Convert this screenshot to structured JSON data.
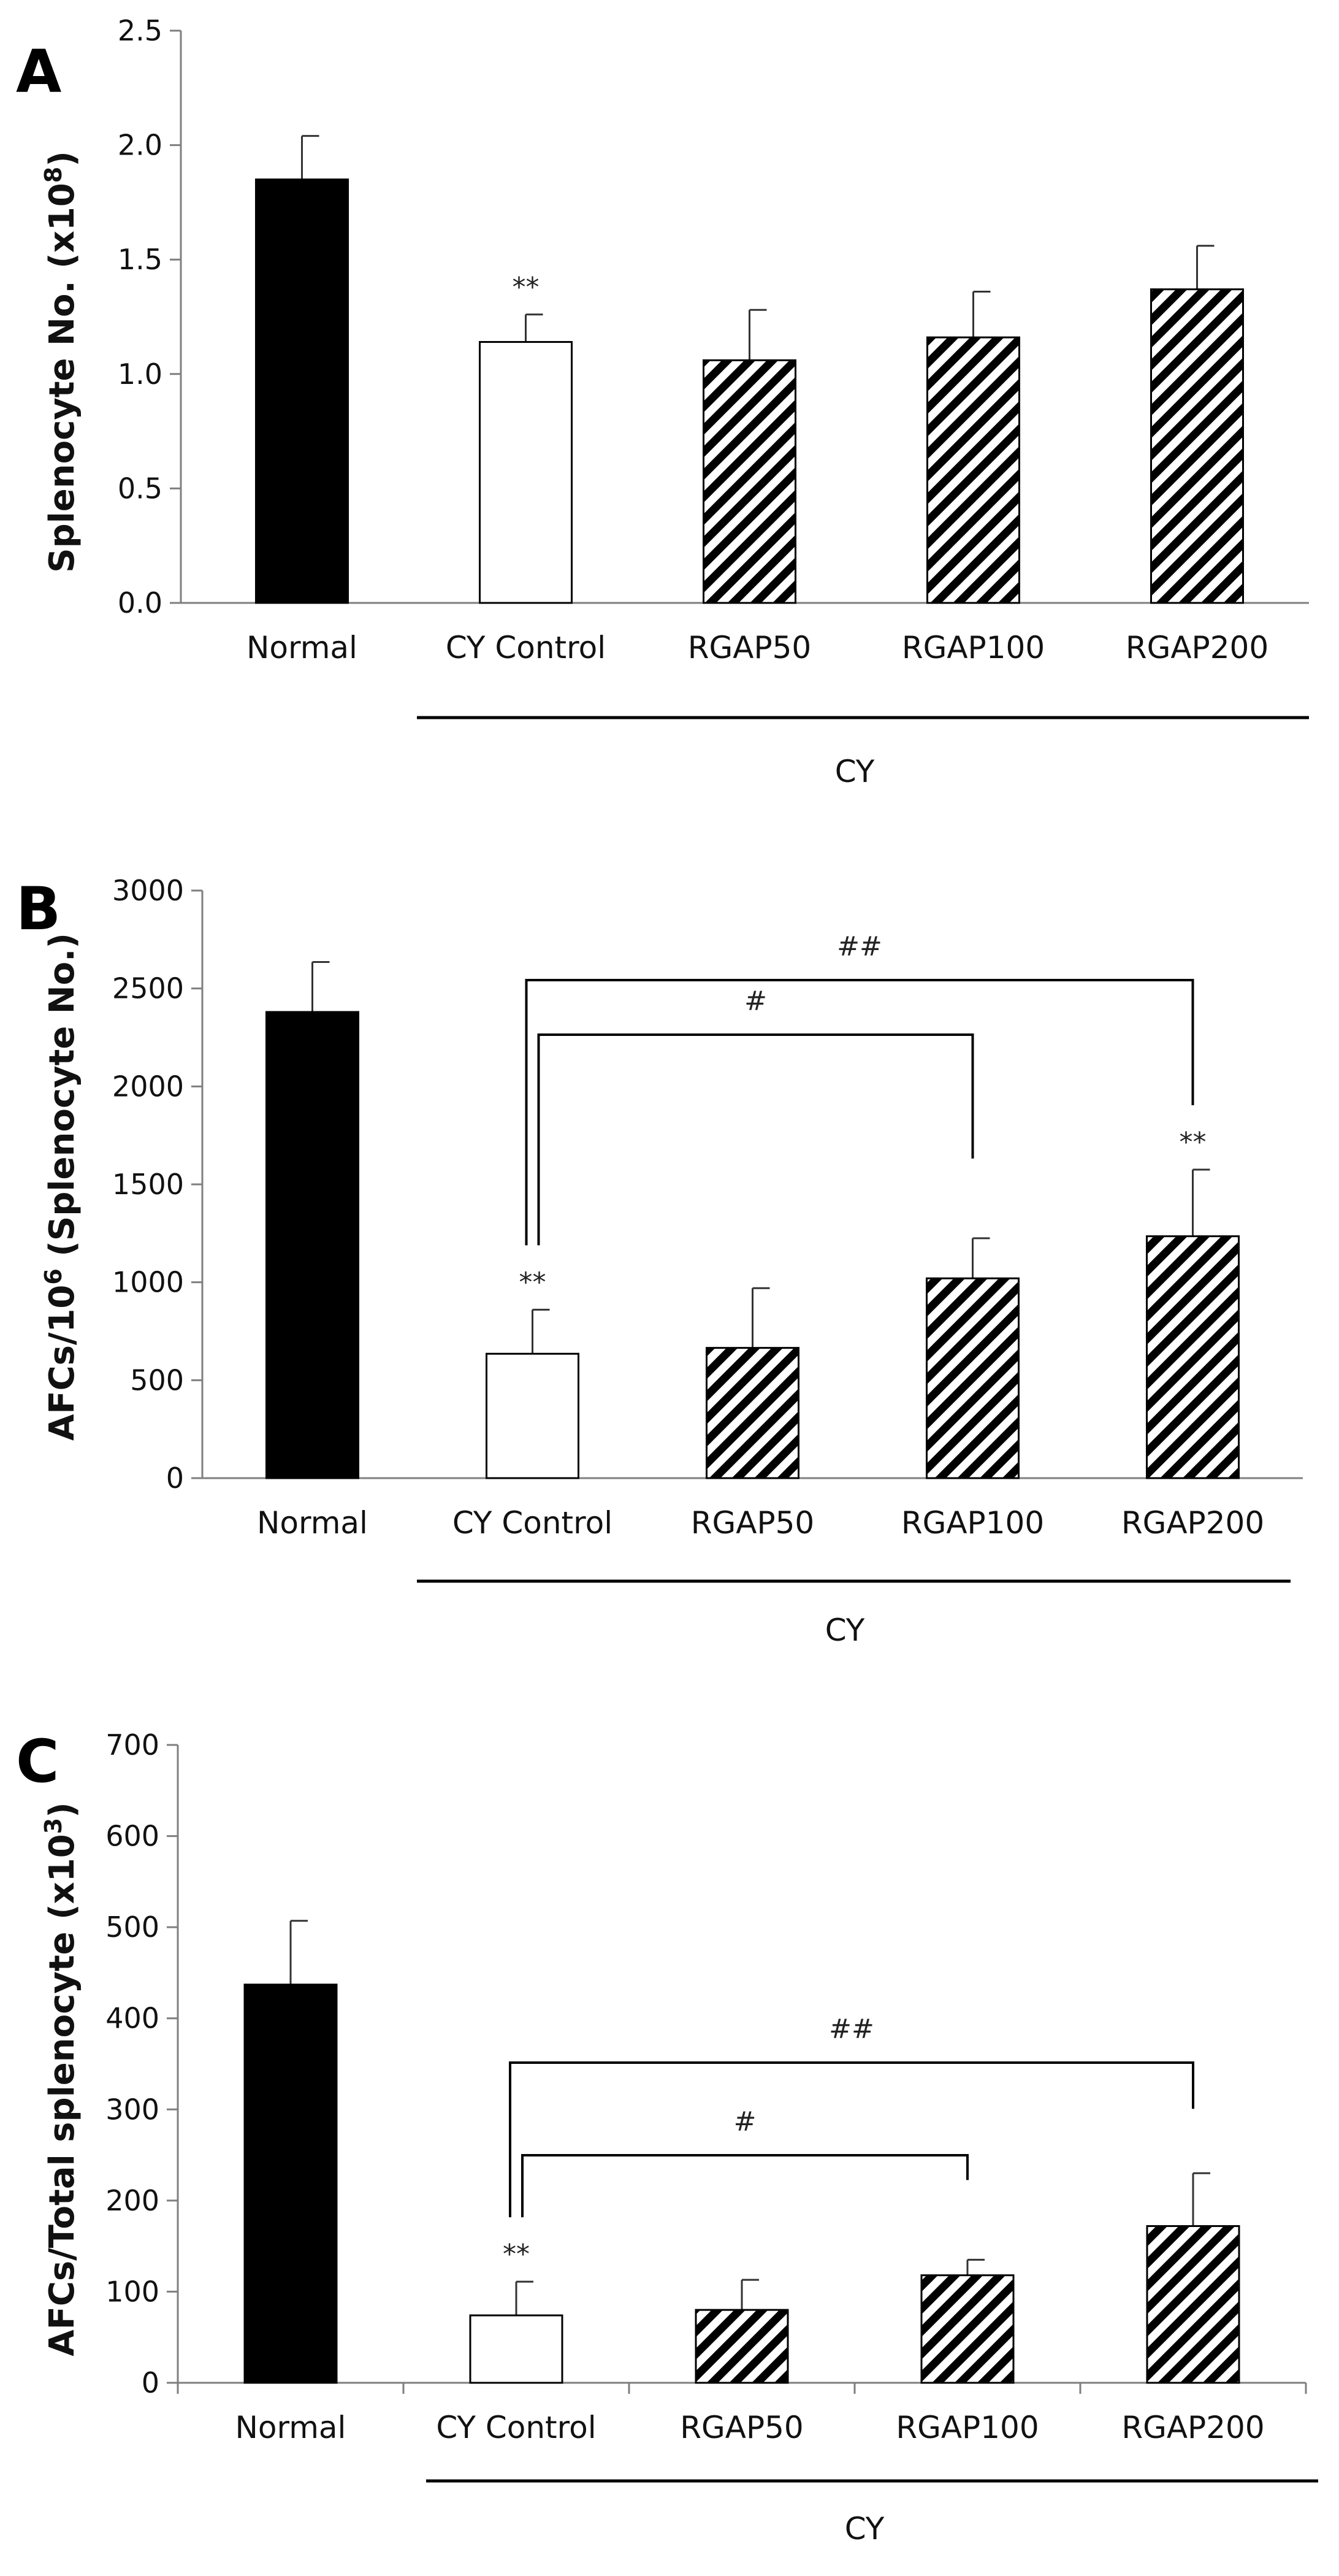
{
  "chart_data": [
    {
      "panel": "A",
      "type": "bar",
      "categories": [
        "Normal",
        "CY Control",
        "RGAP50",
        "RGAP100",
        "RGAP200"
      ],
      "values": [
        1.85,
        1.14,
        1.06,
        1.16,
        1.37
      ],
      "errors": [
        0.19,
        0.12,
        0.22,
        0.2,
        0.19
      ],
      "fills": [
        "solid",
        "white",
        "hatch",
        "hatch",
        "hatch"
      ],
      "ylabel": "Splenocyte No. (x10",
      "ylabel_sup": "8",
      "ylabel_end": ")",
      "ylim": [
        0,
        2.5
      ],
      "yticks": [
        "0.0",
        "0.5",
        "1.0",
        "1.5",
        "2.0",
        "2.5"
      ],
      "bar_annotations": [
        {
          "category": "CY Control",
          "text": "**"
        }
      ],
      "brackets": [],
      "group_label": "CY",
      "group_span": [
        "CY Control",
        "RGAP200"
      ],
      "category_separators": false
    },
    {
      "panel": "B",
      "type": "bar",
      "categories": [
        "Normal",
        "CY Control",
        "RGAP50",
        "RGAP100",
        "RGAP200"
      ],
      "values": [
        2380,
        635,
        665,
        1020,
        1235
      ],
      "errors": [
        255,
        225,
        305,
        205,
        340
      ],
      "fills": [
        "solid",
        "white",
        "hatch",
        "hatch",
        "hatch"
      ],
      "ylabel": "AFCs/10",
      "ylabel_sup": "6",
      "ylabel_end": " (Splenocyte No.)",
      "ylim": [
        0,
        3000
      ],
      "yticks": [
        "0",
        "500",
        "1000",
        "1500",
        "2000",
        "2500",
        "3000"
      ],
      "bar_annotations": [
        {
          "category": "CY Control",
          "text": "**"
        },
        {
          "category": "RGAP200",
          "text": "**"
        }
      ],
      "brackets": [
        {
          "from": "CY Control",
          "to": "RGAP100",
          "text": "#",
          "level": 1
        },
        {
          "from": "CY Control",
          "to": "RGAP200",
          "text": "##",
          "level": 2
        }
      ],
      "group_label": "CY",
      "group_span": [
        "CY Control",
        "RGAP200"
      ],
      "category_separators": false
    },
    {
      "panel": "C",
      "type": "bar",
      "categories": [
        "Normal",
        "CY Control",
        "RGAP50",
        "RGAP100",
        "RGAP200"
      ],
      "values": [
        437,
        74,
        80,
        118,
        172
      ],
      "errors": [
        70,
        37,
        33,
        17,
        58
      ],
      "fills": [
        "solid",
        "white",
        "hatch",
        "hatch",
        "hatch"
      ],
      "ylabel": "AFCs/Total splenocyte (x10",
      "ylabel_sup": "3",
      "ylabel_end": ")",
      "ylim": [
        0,
        700
      ],
      "yticks": [
        "0",
        "100",
        "200",
        "300",
        "400",
        "500",
        "600",
        "700"
      ],
      "bar_annotations": [
        {
          "category": "CY Control",
          "text": "**"
        }
      ],
      "brackets": [
        {
          "from": "CY Control",
          "to": "RGAP100",
          "text": "#",
          "level": 1
        },
        {
          "from": "CY Control",
          "to": "RGAP200",
          "text": "##",
          "level": 2
        }
      ],
      "group_label": "CY",
      "group_span": [
        "CY Control",
        "RGAP200"
      ],
      "category_separators": true
    }
  ],
  "colors": {
    "solid_bar": "#000000",
    "white_bar": "#ffffff",
    "hatch_stroke": "#000000",
    "axis": "#7f7f7f",
    "text": "#111111"
  }
}
